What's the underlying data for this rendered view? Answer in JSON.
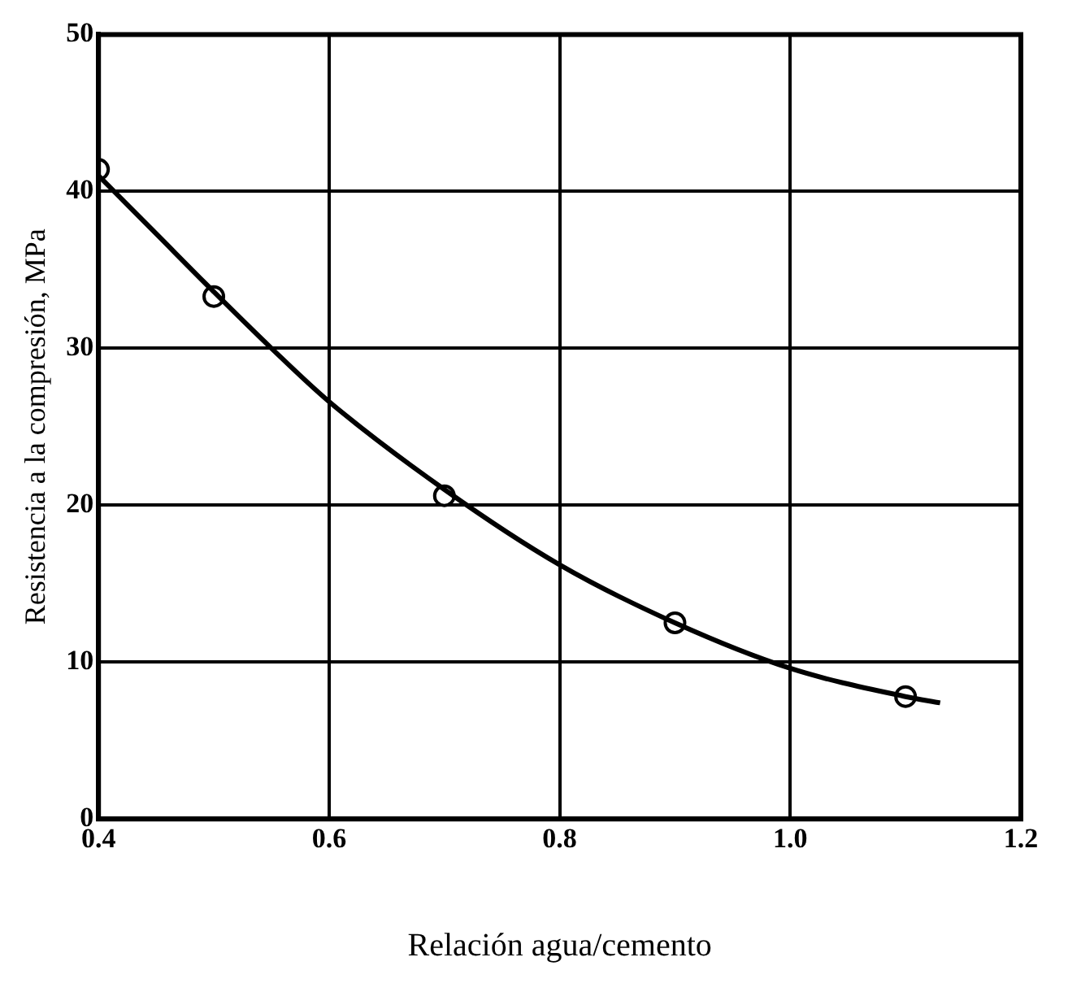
{
  "chart_data": {
    "type": "line",
    "xlabel": "Relación agua/cemento",
    "ylabel": "Resistencia a la compresión, MPa",
    "xlim": [
      0.4,
      1.2
    ],
    "xticks": [
      0.4,
      0.6,
      0.8,
      {
        "value": 1,
        "label": "1.0"
      },
      1.2
    ],
    "ylim": [
      0,
      50
    ],
    "yticks": [
      0,
      10,
      20,
      30,
      40,
      50
    ],
    "grid": true,
    "legend": false,
    "series": [
      {
        "color": "#000000",
        "marker": "none",
        "x": [
          0.4,
          0.45,
          0.5,
          0.55,
          0.6,
          0.7,
          0.8,
          0.9,
          1.0,
          1.1,
          1.13
        ],
        "values": [
          41,
          37.3,
          33.6,
          30,
          26.6,
          21,
          16.2,
          12.5,
          9.6,
          7.8,
          7.4
        ]
      },
      {
        "type": "scatter",
        "color": "#000000",
        "marker": "circle",
        "x": [
          0.4,
          0.5,
          0.7,
          0.9,
          1.1
        ],
        "values": [
          41.4,
          33.3,
          20.6,
          12.5,
          7.8
        ]
      }
    ]
  }
}
